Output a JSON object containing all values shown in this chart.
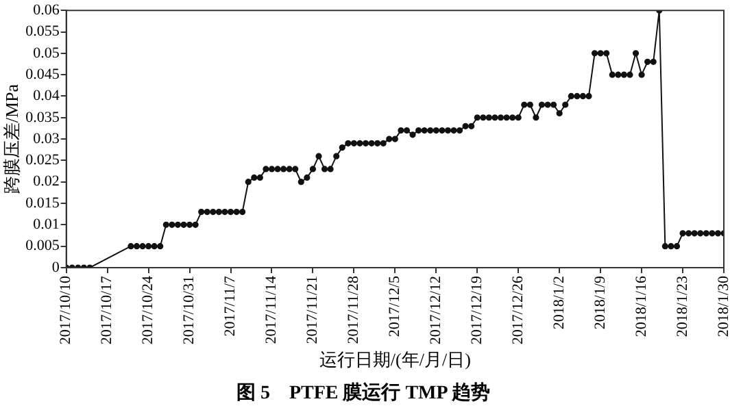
{
  "chart_data": {
    "type": "line",
    "title": "图 5　PTFE 膜运行 TMP 趋势",
    "xlabel": "运行日期/(年/月/日)",
    "ylabel": "跨膜压差/MPa",
    "x": [
      "2017-10-10",
      "2017-10-11",
      "2017-10-12",
      "2017-10-13",
      "2017-10-14",
      "2017-10-21",
      "2017-10-22",
      "2017-10-23",
      "2017-10-24",
      "2017-10-25",
      "2017-10-26",
      "2017-10-27",
      "2017-10-28",
      "2017-10-29",
      "2017-10-30",
      "2017-10-31",
      "2017-11-01",
      "2017-11-02",
      "2017-11-03",
      "2017-11-04",
      "2017-11-05",
      "2017-11-06",
      "2017-11-07",
      "2017-11-08",
      "2017-11-09",
      "2017-11-10",
      "2017-11-11",
      "2017-11-12",
      "2017-11-13",
      "2017-11-14",
      "2017-11-15",
      "2017-11-16",
      "2017-11-17",
      "2017-11-18",
      "2017-11-19",
      "2017-11-20",
      "2017-11-21",
      "2017-11-22",
      "2017-11-23",
      "2017-11-24",
      "2017-11-25",
      "2017-11-26",
      "2017-11-27",
      "2017-11-28",
      "2017-11-29",
      "2017-11-30",
      "2017-12-01",
      "2017-12-02",
      "2017-12-03",
      "2017-12-04",
      "2017-12-05",
      "2017-12-06",
      "2017-12-07",
      "2017-12-08",
      "2017-12-09",
      "2017-12-10",
      "2017-12-11",
      "2017-12-12",
      "2017-12-13",
      "2017-12-14",
      "2017-12-15",
      "2017-12-16",
      "2017-12-17",
      "2017-12-18",
      "2017-12-19",
      "2017-12-20",
      "2017-12-21",
      "2017-12-22",
      "2017-12-23",
      "2017-12-24",
      "2017-12-25",
      "2017-12-26",
      "2017-12-27",
      "2017-12-28",
      "2017-12-29",
      "2017-12-30",
      "2017-12-31",
      "2018-01-01",
      "2018-01-02",
      "2018-01-03",
      "2018-01-04",
      "2018-01-05",
      "2018-01-06",
      "2018-01-07",
      "2018-01-08",
      "2018-01-09",
      "2018-01-10",
      "2018-01-11",
      "2018-01-12",
      "2018-01-13",
      "2018-01-14",
      "2018-01-15",
      "2018-01-16",
      "2018-01-17",
      "2018-01-18",
      "2018-01-19",
      "2018-01-20",
      "2018-01-21",
      "2018-01-22",
      "2018-01-23",
      "2018-01-24",
      "2018-01-25",
      "2018-01-26",
      "2018-01-27",
      "2018-01-28",
      "2018-01-29",
      "2018-01-30"
    ],
    "series": [
      {
        "color": "#111111",
        "values": [
          0,
          0,
          0,
          0,
          0,
          0.005,
          0.005,
          0.005,
          0.005,
          0.005,
          0.005,
          0.01,
          0.01,
          0.01,
          0.01,
          0.01,
          0.01,
          0.013,
          0.013,
          0.013,
          0.013,
          0.013,
          0.013,
          0.013,
          0.013,
          0.02,
          0.021,
          0.021,
          0.023,
          0.023,
          0.023,
          0.023,
          0.023,
          0.023,
          0.02,
          0.021,
          0.023,
          0.026,
          0.023,
          0.023,
          0.026,
          0.028,
          0.029,
          0.029,
          0.029,
          0.029,
          0.029,
          0.029,
          0.029,
          0.03,
          0.03,
          0.032,
          0.032,
          0.031,
          0.032,
          0.032,
          0.032,
          0.032,
          0.032,
          0.032,
          0.032,
          0.032,
          0.033,
          0.033,
          0.035,
          0.035,
          0.035,
          0.035,
          0.035,
          0.035,
          0.035,
          0.035,
          0.038,
          0.038,
          0.035,
          0.038,
          0.038,
          0.038,
          0.036,
          0.038,
          0.04,
          0.04,
          0.04,
          0.04,
          0.05,
          0.05,
          0.05,
          0.045,
          0.045,
          0.045,
          0.045,
          0.05,
          0.045,
          0.048,
          0.048,
          0.06,
          0.005,
          0.005,
          0.005,
          0.008,
          0.008,
          0.008,
          0.008,
          0.008,
          0.008,
          0.008,
          0.008
        ]
      }
    ],
    "xlim": [
      "2017-10-10",
      "2018-01-30"
    ],
    "xticks": [
      {
        "value": "2017-10-10",
        "label": "2017/10/10"
      },
      {
        "value": "2017-10-17",
        "label": "2017/10/17"
      },
      {
        "value": "2017-10-24",
        "label": "2017/10/24"
      },
      {
        "value": "2017-10-31",
        "label": "2017/10/31"
      },
      {
        "value": "2017-11-07",
        "label": "2017/11/7"
      },
      {
        "value": "2017-11-14",
        "label": "2017/11/14"
      },
      {
        "value": "2017-11-21",
        "label": "2017/11/21"
      },
      {
        "value": "2017-11-28",
        "label": "2017/11/28"
      },
      {
        "value": "2017-12-05",
        "label": "2017/12/5"
      },
      {
        "value": "2017-12-12",
        "label": "2017/12/12"
      },
      {
        "value": "2017-12-19",
        "label": "2017/12/19"
      },
      {
        "value": "2017-12-26",
        "label": "2017/12/26"
      },
      {
        "value": "2018-01-02",
        "label": "2018/1/2"
      },
      {
        "value": "2018-01-09",
        "label": "2018/1/9"
      },
      {
        "value": "2018-01-16",
        "label": "2018/1/16"
      },
      {
        "value": "2018-01-23",
        "label": "2018/1/23"
      },
      {
        "value": "2018-01-30",
        "label": "2018/1/30"
      }
    ],
    "ylim": [
      0,
      0.06
    ],
    "yticks": [
      0,
      0.005,
      0.01,
      0.015,
      0.02,
      0.025,
      0.03,
      0.035,
      0.04,
      0.045,
      0.05,
      0.055,
      0.06
    ],
    "grid": false,
    "legend": false,
    "marker": "circle",
    "line_style": "solid"
  }
}
